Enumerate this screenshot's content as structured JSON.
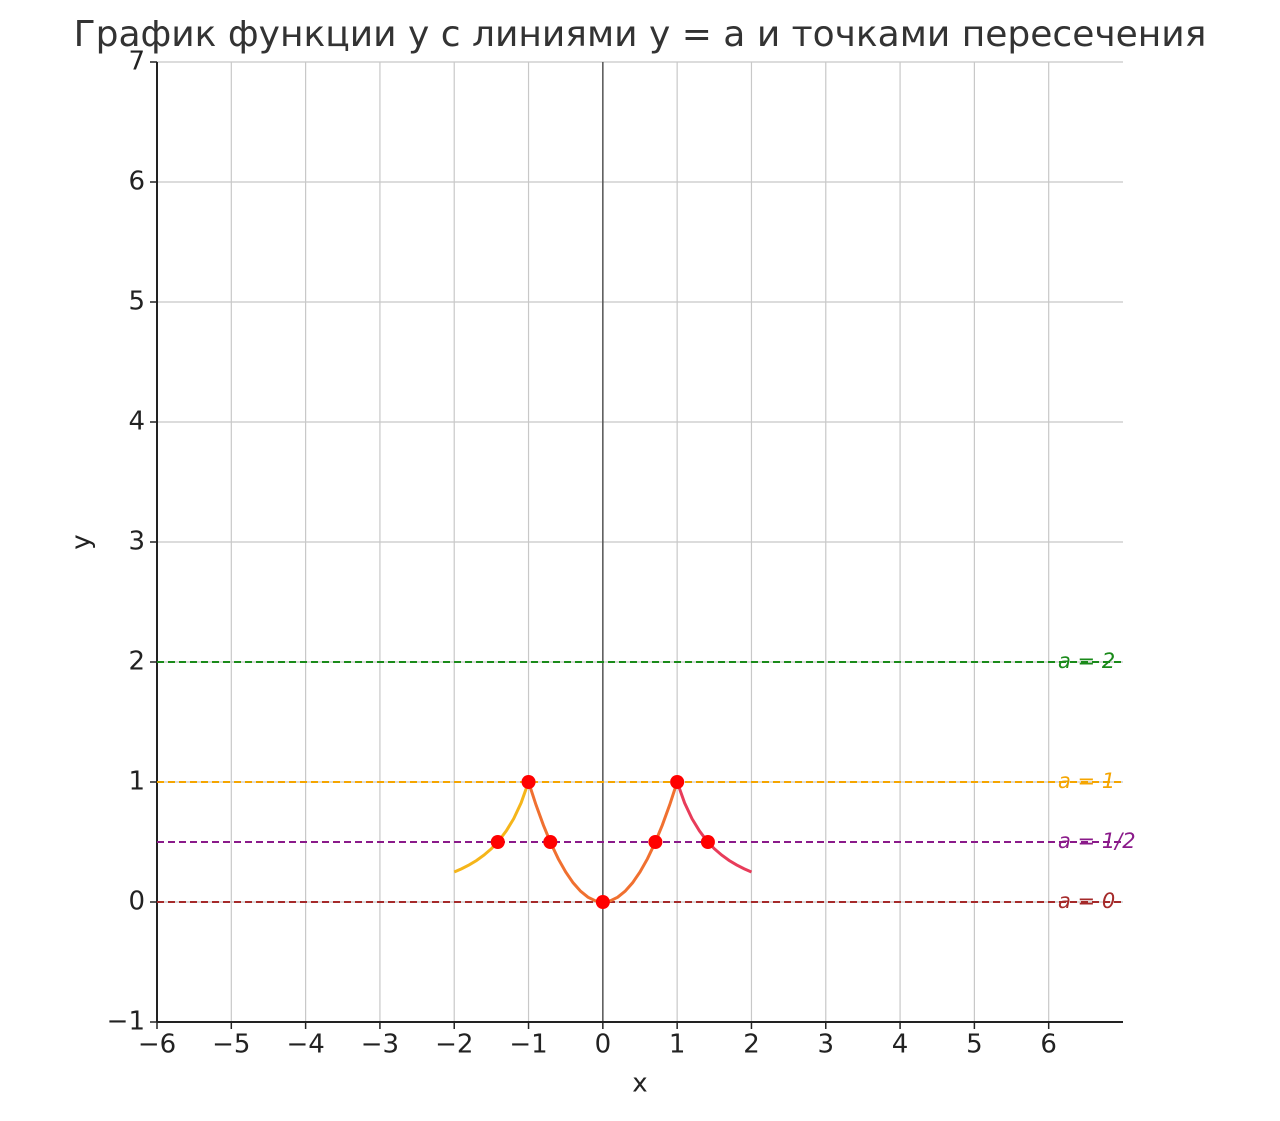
{
  "chart_data": {
    "type": "line",
    "title": "График функции y с линиями y = a и точками пересечения",
    "x_label": "x",
    "y_label": "y",
    "xlim": [
      -6,
      7
    ],
    "ylim": [
      -1,
      7
    ],
    "xticks": [
      {
        "value": -6,
        "label": "−6"
      },
      {
        "value": -5,
        "label": "−5"
      },
      {
        "value": -4,
        "label": "−4"
      },
      {
        "value": -3,
        "label": "−3"
      },
      {
        "value": -2,
        "label": "−2"
      },
      {
        "value": -1,
        "label": "−1"
      },
      0,
      1,
      2,
      3,
      4,
      5,
      6
    ],
    "yticks": [
      {
        "value": -1,
        "label": "−1"
      },
      0,
      1,
      2,
      3,
      4,
      5,
      6,
      7
    ],
    "grid": true,
    "zero_axis": true,
    "series": [
      {
        "color": "#f5b51a",
        "x": [
          -2,
          -1.9,
          -1.8,
          -1.7,
          -1.6,
          -1.5,
          -1.4,
          -1.3,
          -1.2,
          -1.1,
          -1
        ],
        "values": [
          0.25,
          0.277,
          0.309,
          0.346,
          0.391,
          0.444,
          0.51,
          0.592,
          0.694,
          0.826,
          1
        ]
      },
      {
        "color": "#f07030",
        "x": [
          -1,
          -0.9,
          -0.8,
          -0.7,
          -0.6,
          -0.5,
          -0.4,
          -0.3,
          -0.2,
          -0.1,
          0,
          0.1,
          0.2,
          0.3,
          0.4,
          0.5,
          0.6,
          0.7,
          0.8,
          0.9,
          1
        ],
        "values": [
          1,
          0.81,
          0.64,
          0.49,
          0.36,
          0.25,
          0.16,
          0.09,
          0.04,
          0.01,
          0,
          0.01,
          0.04,
          0.09,
          0.16,
          0.25,
          0.36,
          0.49,
          0.64,
          0.81,
          1
        ]
      },
      {
        "color": "#e83c5a",
        "x": [
          1,
          1.1,
          1.2,
          1.3,
          1.4,
          1.5,
          1.6,
          1.7,
          1.8,
          1.9,
          2
        ],
        "values": [
          1,
          0.826,
          0.694,
          0.592,
          0.51,
          0.444,
          0.391,
          0.346,
          0.309,
          0.277,
          0.25
        ]
      }
    ],
    "hlines": [
      {
        "value": 2,
        "label": "a = 2",
        "color": "#1a8a1a"
      },
      {
        "value": 1,
        "label": "a = 1",
        "color": "#f5a500"
      },
      {
        "value": 0.5,
        "label": "a = 1/2",
        "color": "#8a1a8a"
      },
      {
        "value": 0,
        "label": "a = 0",
        "color": "#a52a2a"
      }
    ],
    "points": {
      "color": "#ff0000",
      "x": [
        -1,
        1,
        -1.414,
        -0.707,
        0.707,
        1.414,
        0
      ],
      "values": [
        1,
        1,
        0.5,
        0.5,
        0.5,
        0.5,
        0
      ]
    }
  }
}
